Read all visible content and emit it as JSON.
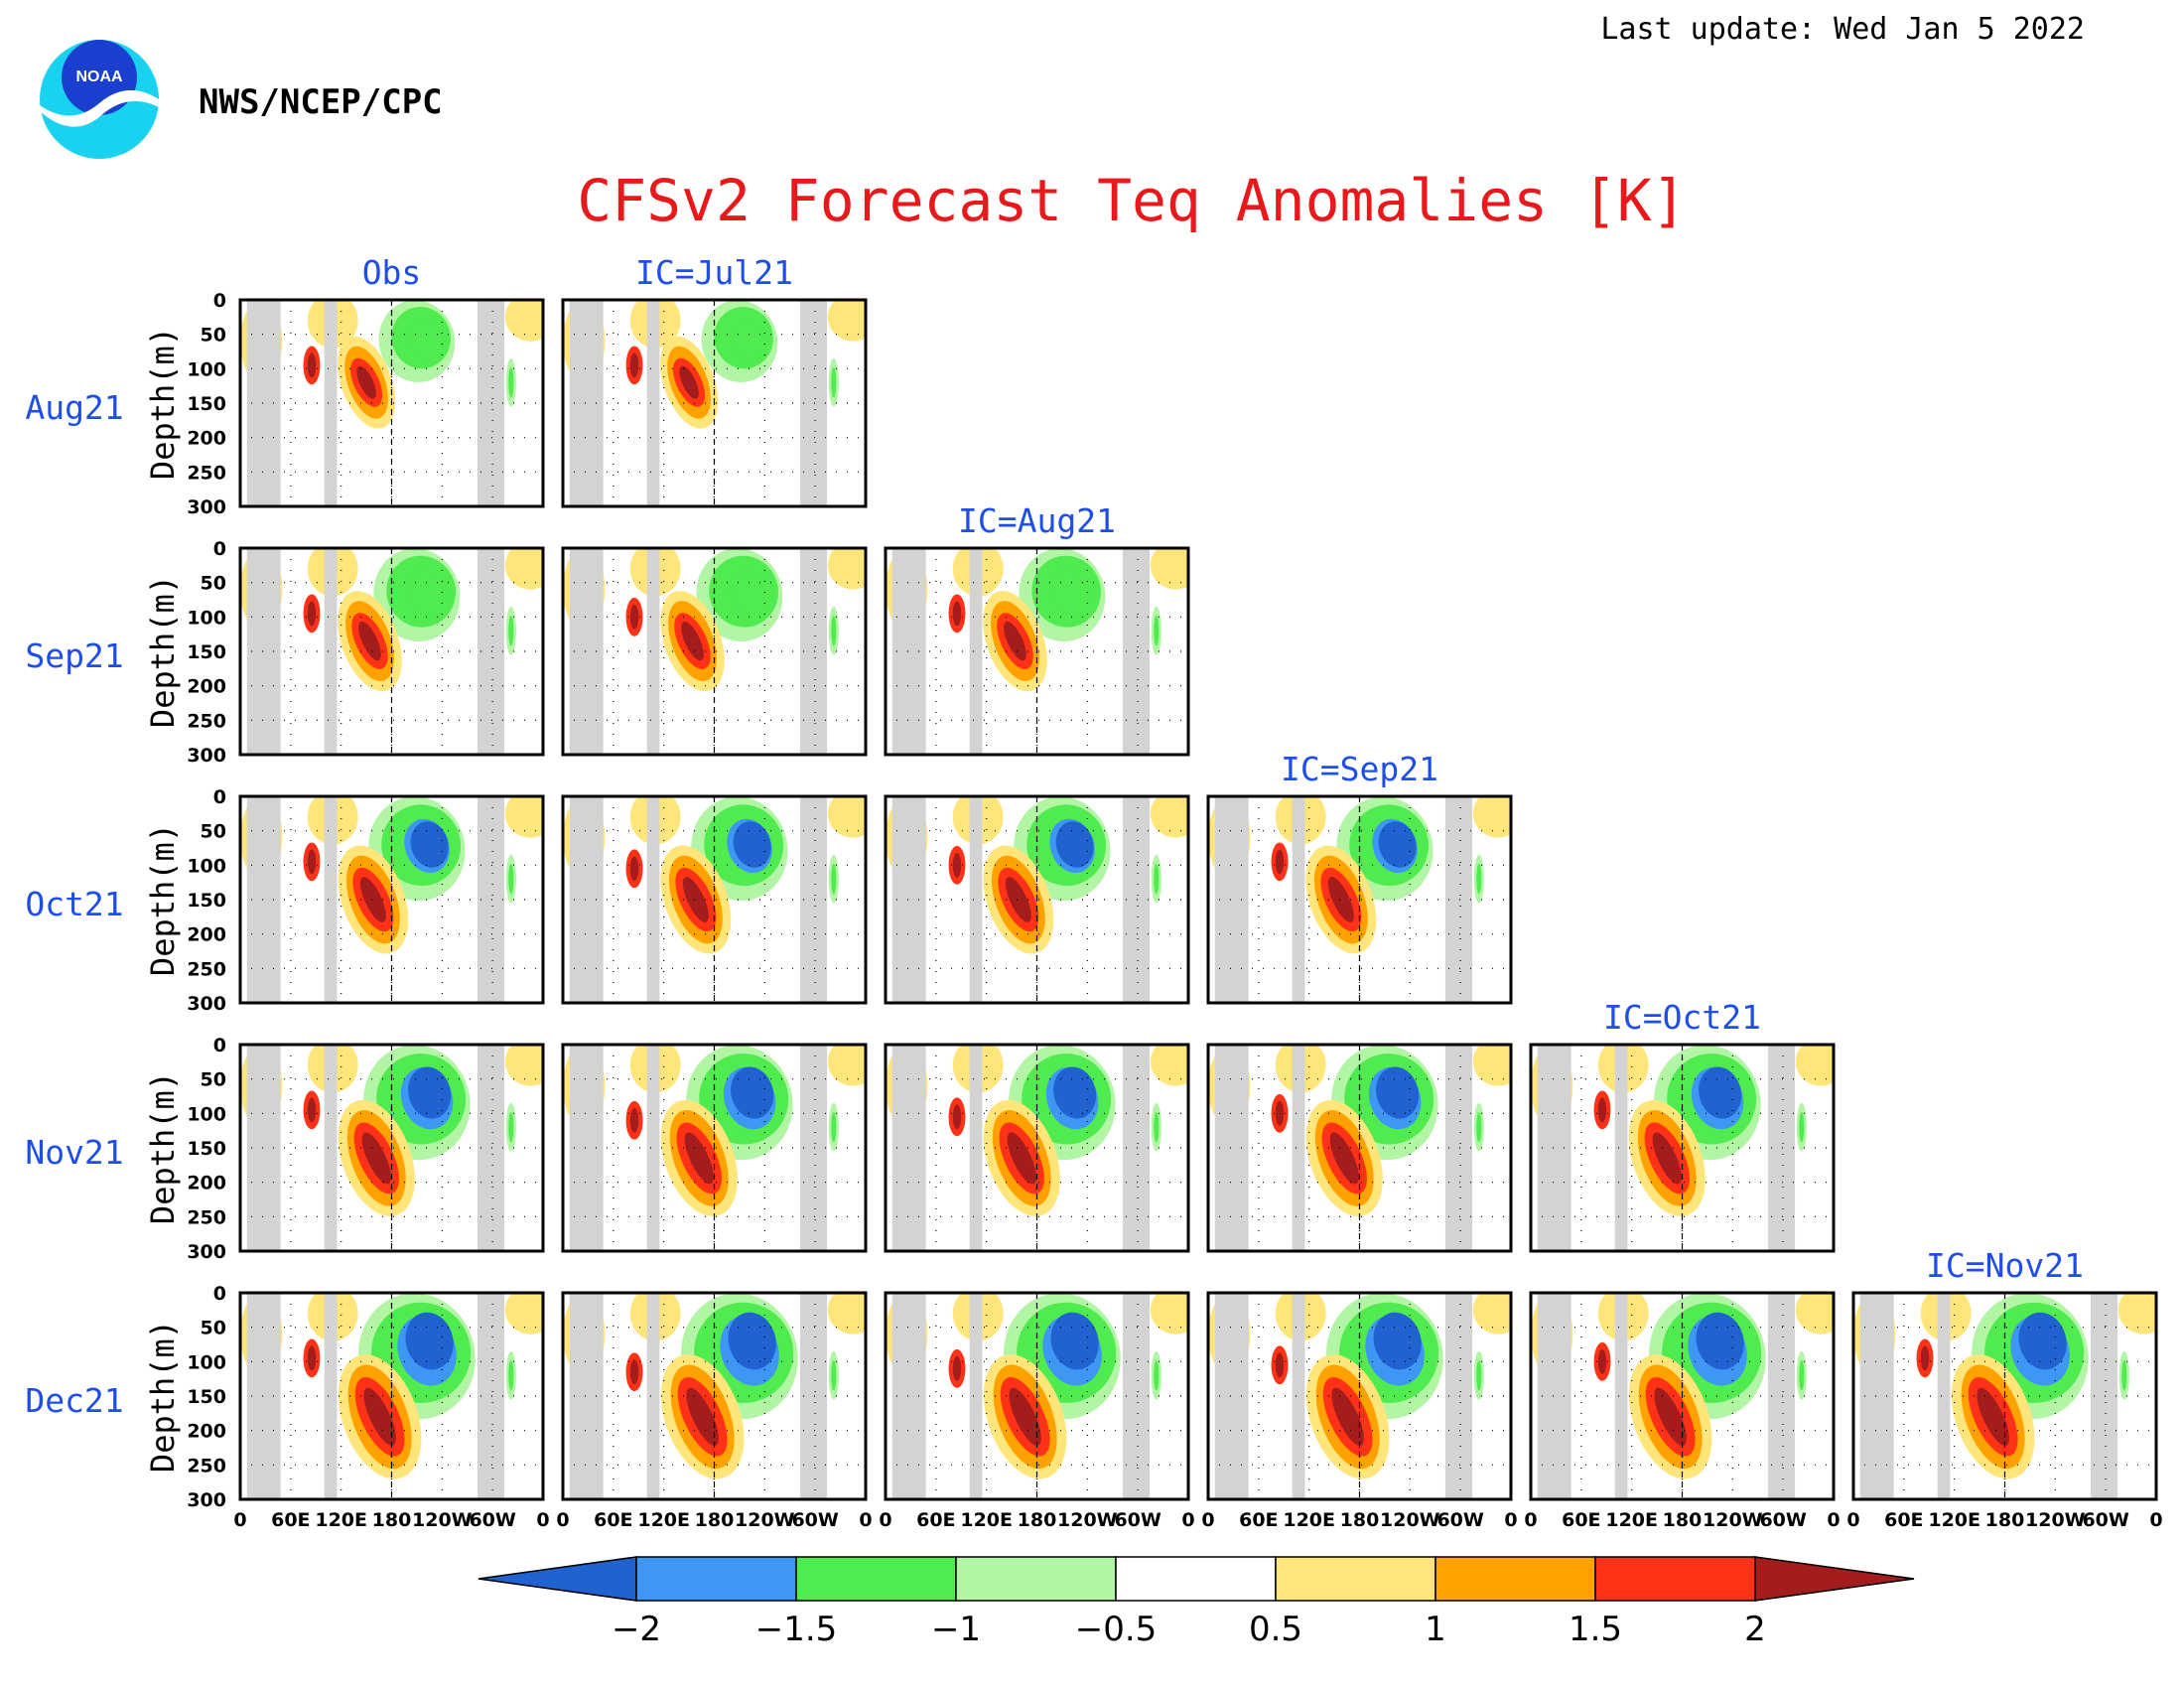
{
  "header": {
    "last_update": "Last update: Wed Jan 5 2022",
    "agency": "NWS/NCEP/CPC",
    "logo_text": "NOAA"
  },
  "chart_data": {
    "type": "heatmap",
    "title": "CFSv2 Forecast Teq Anomalies [K]",
    "ylabel": "Depth(m)",
    "y_ticks": [
      "0",
      "50",
      "100",
      "150",
      "200",
      "250",
      "300"
    ],
    "ylim": [
      0,
      300
    ],
    "x_ticks": [
      "0",
      "60E",
      "120E",
      "180",
      "120W",
      "60W",
      "0"
    ],
    "xlim": [
      0,
      360
    ],
    "rows": [
      "Aug21",
      "Sep21",
      "Oct21",
      "Nov21",
      "Dec21"
    ],
    "columns": [
      "Obs",
      "IC=Jul21",
      "IC=Aug21",
      "IC=Sep21",
      "IC=Oct21",
      "IC=Nov21"
    ],
    "colorbar": {
      "labels": [
        "−2",
        "−1.5",
        "−1",
        "−0.5",
        "0.5",
        "1",
        "1.5",
        "2"
      ],
      "levels": [
        -2,
        -1.5,
        -1,
        -0.5,
        0.5,
        1,
        1.5,
        2
      ],
      "colors": [
        "#1f62d0",
        "#3f97f5",
        "#4feb4f",
        "#b1f5a5",
        "#ffffff",
        "#ffe57a",
        "#ffa200",
        "#ff3218",
        "#a41d1d"
      ]
    },
    "land_mask_color": "#d3d3d3",
    "grid": "dotted"
  }
}
